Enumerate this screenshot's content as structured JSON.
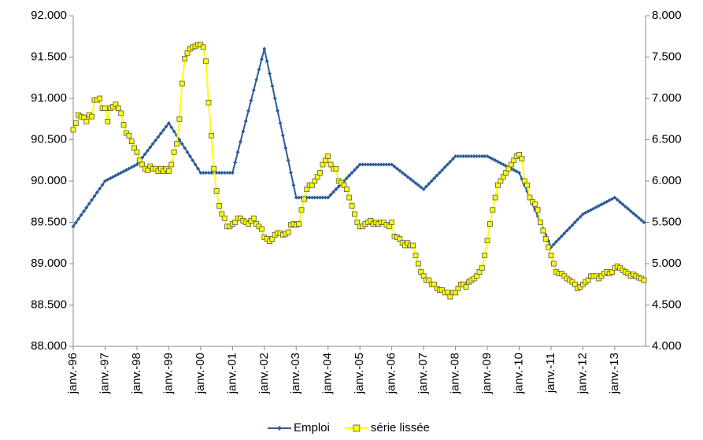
{
  "chart_data": {
    "type": "line",
    "categories": [
      "janv.-96",
      null,
      null,
      null,
      null,
      null,
      null,
      null,
      null,
      null,
      null,
      null,
      "janv.-97",
      null,
      null,
      null,
      null,
      null,
      null,
      null,
      null,
      null,
      null,
      null,
      "janv.-98",
      null,
      null,
      null,
      null,
      null,
      null,
      null,
      null,
      null,
      null,
      null,
      "janv.-99",
      null,
      null,
      null,
      null,
      null,
      null,
      null,
      null,
      null,
      null,
      null,
      "janv.-00",
      null,
      null,
      null,
      null,
      null,
      null,
      null,
      null,
      null,
      null,
      null,
      "janv.-01",
      null,
      null,
      null,
      null,
      null,
      null,
      null,
      null,
      null,
      null,
      null,
      "janv.-02",
      null,
      null,
      null,
      null,
      null,
      null,
      null,
      null,
      null,
      null,
      null,
      "janv.-03",
      null,
      null,
      null,
      null,
      null,
      null,
      null,
      null,
      null,
      null,
      null,
      "janv.-04",
      null,
      null,
      null,
      null,
      null,
      null,
      null,
      null,
      null,
      null,
      null,
      "janv.-05",
      null,
      null,
      null,
      null,
      null,
      null,
      null,
      null,
      null,
      null,
      null,
      "janv.-06",
      null,
      null,
      null,
      null,
      null,
      null,
      null,
      null,
      null,
      null,
      null,
      "janv.-07",
      null,
      null,
      null,
      null,
      null,
      null,
      null,
      null,
      null,
      null,
      null,
      "janv.-08",
      null,
      null,
      null,
      null,
      null,
      null,
      null,
      null,
      null,
      null,
      null,
      "janv.-09",
      null,
      null,
      null,
      null,
      null,
      null,
      null,
      null,
      null,
      null,
      null,
      "janv.-10",
      null,
      null,
      null,
      null,
      null,
      null,
      null,
      null,
      null,
      null,
      null,
      "janv.-11",
      null,
      null,
      null,
      null,
      null,
      null,
      null,
      null,
      null,
      null,
      null,
      "janv.-12",
      null,
      null,
      null,
      null,
      null,
      null,
      null,
      null,
      null,
      null,
      null,
      "janv.-13",
      null,
      null,
      null,
      null,
      null,
      null,
      null,
      null,
      null,
      null,
      null
    ],
    "series": [
      {
        "name": "Emploi",
        "color": "#2e5c9a",
        "marker": "diamond",
        "values": [
          89450,
          89496,
          89542,
          89588,
          89633,
          89679,
          89725,
          89771,
          89817,
          89863,
          89908,
          89954,
          90000,
          90017,
          90033,
          90050,
          90067,
          90083,
          90100,
          90117,
          90133,
          90150,
          90167,
          90183,
          90200,
          90242,
          90283,
          90325,
          90367,
          90408,
          90450,
          90492,
          90533,
          90575,
          90617,
          90658,
          90700,
          90650,
          90600,
          90550,
          90500,
          90450,
          90400,
          90350,
          90300,
          90250,
          90200,
          90150,
          90100,
          90100,
          90100,
          90100,
          90100,
          90100,
          90100,
          90100,
          90100,
          90100,
          90100,
          90100,
          90100,
          90225,
          90350,
          90475,
          90600,
          90725,
          90850,
          90975,
          91100,
          91225,
          91350,
          91475,
          91600,
          91450,
          91300,
          91150,
          91000,
          90850,
          90700,
          90550,
          90400,
          90250,
          90100,
          89950,
          89800,
          89800,
          89800,
          89800,
          89800,
          89800,
          89800,
          89800,
          89800,
          89800,
          89800,
          89800,
          89800,
          89833,
          89867,
          89900,
          89933,
          89967,
          90000,
          90033,
          90067,
          90100,
          90133,
          90167,
          90200,
          90200,
          90200,
          90200,
          90200,
          90200,
          90200,
          90200,
          90200,
          90200,
          90200,
          90200,
          90200,
          90175,
          90150,
          90125,
          90100,
          90075,
          90050,
          90025,
          90000,
          89975,
          89950,
          89925,
          89900,
          89933,
          89967,
          90000,
          90033,
          90067,
          90100,
          90133,
          90167,
          90200,
          90233,
          90267,
          90300,
          90300,
          90300,
          90300,
          90300,
          90300,
          90300,
          90300,
          90300,
          90300,
          90300,
          90300,
          90300,
          90283,
          90267,
          90250,
          90233,
          90217,
          90200,
          90183,
          90167,
          90150,
          90133,
          90117,
          90100,
          90025,
          89950,
          89875,
          89800,
          89725,
          89650,
          89575,
          89500,
          89425,
          89350,
          89275,
          89200,
          89233,
          89267,
          89300,
          89333,
          89367,
          89400,
          89433,
          89467,
          89500,
          89533,
          89567,
          89600,
          89617,
          89633,
          89650,
          89667,
          89683,
          89700,
          89717,
          89733,
          89750,
          89767,
          89783,
          89800,
          89773,
          89745,
          89718,
          89691,
          89664,
          89636,
          89609,
          89582,
          89555,
          89527,
          89500
        ]
      },
      {
        "name": "série lissée",
        "color": "#ffff00",
        "marker": "square",
        "axis": "y2",
        "values": [
          6620,
          6700,
          6800,
          6780,
          6770,
          6720,
          6800,
          6780,
          6980,
          6980,
          7000,
          6880,
          6880,
          6720,
          6880,
          6900,
          6930,
          6880,
          6820,
          6680,
          6580,
          6550,
          6480,
          6400,
          6350,
          6250,
          6200,
          6150,
          6130,
          6180,
          6150,
          6150,
          6120,
          6150,
          6120,
          6150,
          6120,
          6200,
          6350,
          6450,
          6750,
          7180,
          7480,
          7550,
          7600,
          7620,
          7630,
          7650,
          7650,
          7620,
          7450,
          6950,
          6550,
          6150,
          5880,
          5700,
          5600,
          5550,
          5450,
          5450,
          5480,
          5500,
          5550,
          5550,
          5520,
          5500,
          5480,
          5520,
          5550,
          5480,
          5450,
          5420,
          5320,
          5300,
          5270,
          5300,
          5350,
          5370,
          5370,
          5350,
          5360,
          5380,
          5470,
          5480,
          5470,
          5480,
          5650,
          5780,
          5900,
          5950,
          5950,
          6000,
          6050,
          6100,
          6200,
          6250,
          6300,
          6200,
          6150,
          6150,
          6000,
          5980,
          5950,
          5900,
          5800,
          5700,
          5600,
          5500,
          5450,
          5450,
          5480,
          5500,
          5520,
          5480,
          5500,
          5480,
          5500,
          5500,
          5470,
          5450,
          5500,
          5330,
          5320,
          5300,
          5250,
          5220,
          5250,
          5220,
          5220,
          5100,
          5000,
          4900,
          4850,
          4800,
          4800,
          4750,
          4750,
          4700,
          4680,
          4680,
          4650,
          4650,
          4600,
          4650,
          4650,
          4700,
          4750,
          4750,
          4720,
          4780,
          4800,
          4820,
          4850,
          4900,
          4950,
          5100,
          5280,
          5480,
          5650,
          5800,
          5950,
          6000,
          6050,
          6100,
          6150,
          6200,
          6250,
          6300,
          6320,
          6270,
          6000,
          5950,
          5800,
          5750,
          5720,
          5650,
          5500,
          5400,
          5300,
          5200,
          5100,
          5000,
          4900,
          4880,
          4880,
          4850,
          4820,
          4800,
          4780,
          4750,
          4700,
          4720,
          4750,
          4780,
          4800,
          4850,
          4850,
          4850,
          4820,
          4850,
          4880,
          4900,
          4880,
          4900,
          4950,
          4970,
          4950,
          4920,
          4900,
          4880,
          4850,
          4870,
          4850,
          4830,
          4820,
          4800
        ]
      }
    ],
    "ylim": [
      88000,
      92000
    ],
    "yticks": [
      {
        "value": 88000,
        "label": "88.000"
      },
      {
        "value": 88500,
        "label": "88.500"
      },
      {
        "value": 89000,
        "label": "89.000"
      },
      {
        "value": 89500,
        "label": "89.500"
      },
      {
        "value": 90000,
        "label": "90.000"
      },
      {
        "value": 90500,
        "label": "90.500"
      },
      {
        "value": 91000,
        "label": "91.000"
      },
      {
        "value": 91500,
        "label": "91.500"
      },
      {
        "value": 92000,
        "label": "92.000"
      }
    ],
    "y2lim": [
      4000,
      8000
    ],
    "y2ticks": [
      {
        "value": 4000,
        "label": "4.000"
      },
      {
        "value": 4500,
        "label": "4.500"
      },
      {
        "value": 5000,
        "label": "5.000"
      },
      {
        "value": 5500,
        "label": "5.500"
      },
      {
        "value": 6000,
        "label": "6.000"
      },
      {
        "value": 6500,
        "label": "6.500"
      },
      {
        "value": 7000,
        "label": "7.000"
      },
      {
        "value": 7500,
        "label": "7.500"
      },
      {
        "value": 8000,
        "label": "8.000"
      }
    ],
    "legend": "bottom"
  }
}
